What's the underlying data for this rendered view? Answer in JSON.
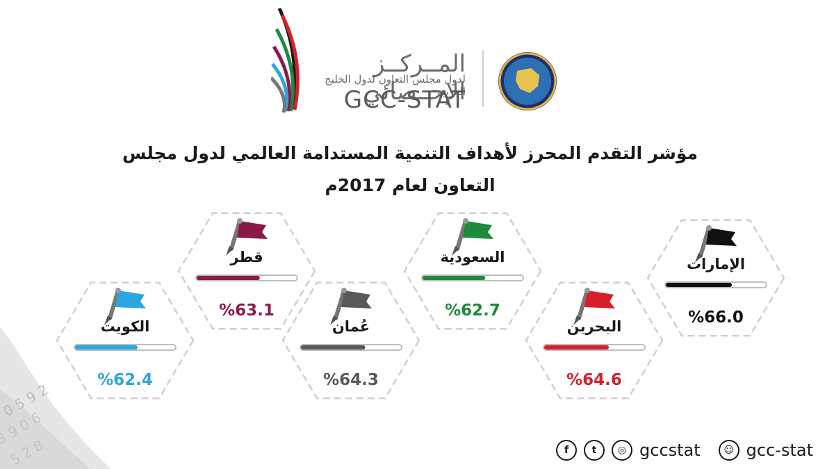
{
  "header": {
    "logo_ar": "المــركــز الإحــصائي",
    "logo_sub": "لدول مجلس التعاون لدول الخليج العربية",
    "logo_en": "GCC-STAT"
  },
  "title_line1": "مؤشر التقدم المحرز لأهداف التنمية المستدامة العالمي لدول مجلس",
  "title_line2": "التعاون لعام 2017م",
  "chart_data": {
    "type": "bar",
    "categories": [
      "الإمارات",
      "البحرين",
      "السعودية",
      "عُمان",
      "قطر",
      "الكويت"
    ],
    "values": [
      66.0,
      64.6,
      62.7,
      64.3,
      63.1,
      62.4
    ],
    "value_labels": [
      "%66.0",
      "%64.6",
      "%62.7",
      "%64.3",
      "%63.1",
      "%62.4"
    ],
    "colors": [
      "#111111",
      "#d61f2c",
      "#1e8a3c",
      "#595959",
      "#8b1a4b",
      "#2aa7e0"
    ],
    "ylim": [
      0,
      100
    ],
    "title": "مؤشر التقدم المحرز لأهداف التنمية المستدامة العالمي لدول مجلس التعاون لعام 2017م"
  },
  "footer": {
    "social_handle": "gccstat",
    "snapchat_handle": "gcc-stat",
    "icons": [
      "facebook-icon",
      "twitter-icon",
      "instagram-icon",
      "snapchat-icon"
    ]
  }
}
